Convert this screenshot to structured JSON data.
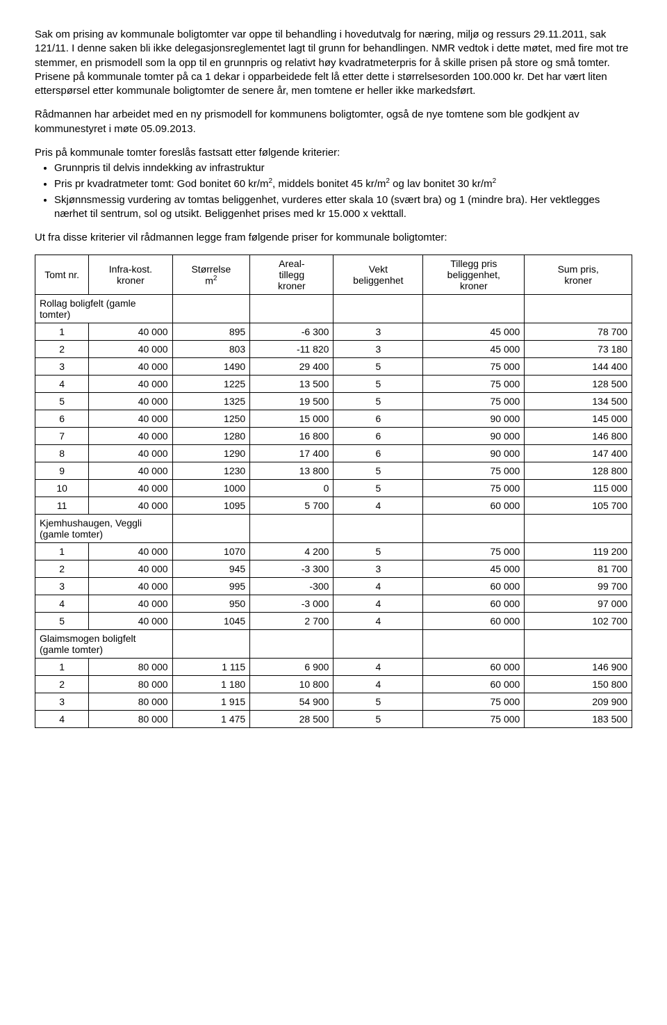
{
  "paragraphs": {
    "p1": "Sak om prising av kommunale boligtomter var oppe til behandling i hovedutvalg for næring, miljø og ressurs 29.11.2011, sak 121/11. I denne saken bli ikke delegasjonsreglementet lagt til grunn for behandlingen. NMR vedtok i dette møtet, med fire mot tre stemmer, en prismodell som la opp til en grunnpris og relativt høy kvadratmeterpris for å skille prisen på store og små tomter. Prisene på kommunale tomter på ca 1 dekar i opparbeidede felt lå etter dette i størrelsesorden 100.000 kr. Det har vært liten etterspørsel etter kommunale boligtomter de senere år, men tomtene er heller ikke markedsført.",
    "p2": "Rådmannen har arbeidet med en ny prismodell for kommunens boligtomter, også de nye tomtene som ble godkjent av kommunestyret i møte 05.09.2013.",
    "p3": "Pris på kommunale tomter foreslås fastsatt etter følgende kriterier:",
    "b1": "Grunnpris til delvis inndekking av infrastruktur",
    "b2a": "Pris pr kvadratmeter tomt: God bonitet 60 kr/m",
    "b2b": ", middels bonitet 45 kr/m",
    "b2c": " og lav bonitet 30 kr/m",
    "b3": "Skjønnsmessig vurdering av tomtas beliggenhet, vurderes etter skala 10 (svært bra) og 1 (mindre bra). Her vektlegges nærhet til sentrum, sol og utsikt. Beliggenhet prises med kr 15.000 x vekttall.",
    "p4": "Ut fra disse kriterier vil rådmannen legge fram følgende priser for kommunale boligtomter:"
  },
  "headers": {
    "c1": "Tomt nr.",
    "c2a": "Infra-kost.",
    "c2b": "kroner",
    "c3a": "Størrelse",
    "c3b": "m",
    "c4a": "Areal-",
    "c4b": "tillegg",
    "c4c": "kroner",
    "c5a": "Vekt",
    "c5b": "beliggenhet",
    "c6a": "Tillegg pris",
    "c6b": "beliggenhet,",
    "c6c": "kroner",
    "c7a": "Sum pris,",
    "c7b": "kroner"
  },
  "sections": {
    "s1": "Rollag boligfelt (gamle tomter)",
    "s2": "Kjemhushaugen, Veggli (gamle tomter)",
    "s3": "Glaimsmogen boligfelt (gamle tomter)"
  },
  "rows": {
    "r1": {
      "n": "1",
      "infra": "40 000",
      "size": "895",
      "areal": "-6 300",
      "vekt": "3",
      "tillegg": "45 000",
      "sum": "78 700"
    },
    "r2": {
      "n": "2",
      "infra": "40 000",
      "size": "803",
      "areal": "-11 820",
      "vekt": "3",
      "tillegg": "45 000",
      "sum": "73 180"
    },
    "r3": {
      "n": "3",
      "infra": "40 000",
      "size": "1490",
      "areal": "29 400",
      "vekt": "5",
      "tillegg": "75 000",
      "sum": "144 400"
    },
    "r4": {
      "n": "4",
      "infra": "40 000",
      "size": "1225",
      "areal": "13 500",
      "vekt": "5",
      "tillegg": "75 000",
      "sum": "128 500"
    },
    "r5": {
      "n": "5",
      "infra": "40 000",
      "size": "1325",
      "areal": "19 500",
      "vekt": "5",
      "tillegg": "75 000",
      "sum": "134 500"
    },
    "r6": {
      "n": "6",
      "infra": "40 000",
      "size": "1250",
      "areal": "15 000",
      "vekt": "6",
      "tillegg": "90 000",
      "sum": "145 000"
    },
    "r7": {
      "n": "7",
      "infra": "40 000",
      "size": "1280",
      "areal": "16 800",
      "vekt": "6",
      "tillegg": "90 000",
      "sum": "146 800"
    },
    "r8": {
      "n": "8",
      "infra": "40 000",
      "size": "1290",
      "areal": "17 400",
      "vekt": "6",
      "tillegg": "90 000",
      "sum": "147 400"
    },
    "r9": {
      "n": "9",
      "infra": "40 000",
      "size": "1230",
      "areal": "13 800",
      "vekt": "5",
      "tillegg": "75 000",
      "sum": "128 800"
    },
    "r10": {
      "n": "10",
      "infra": "40 000",
      "size": "1000",
      "areal": "0",
      "vekt": "5",
      "tillegg": "75 000",
      "sum": "115 000"
    },
    "r11": {
      "n": "11",
      "infra": "40 000",
      "size": "1095",
      "areal": "5 700",
      "vekt": "4",
      "tillegg": "60 000",
      "sum": "105 700"
    },
    "k1": {
      "n": "1",
      "infra": "40 000",
      "size": "1070",
      "areal": "4 200",
      "vekt": "5",
      "tillegg": "75 000",
      "sum": "119 200"
    },
    "k2": {
      "n": "2",
      "infra": "40 000",
      "size": "945",
      "areal": "-3 300",
      "vekt": "3",
      "tillegg": "45 000",
      "sum": "81 700"
    },
    "k3": {
      "n": "3",
      "infra": "40 000",
      "size": "995",
      "areal": "-300",
      "vekt": "4",
      "tillegg": "60 000",
      "sum": "99 700"
    },
    "k4": {
      "n": "4",
      "infra": "40 000",
      "size": "950",
      "areal": "-3 000",
      "vekt": "4",
      "tillegg": "60 000",
      "sum": "97 000"
    },
    "k5": {
      "n": "5",
      "infra": "40 000",
      "size": "1045",
      "areal": "2 700",
      "vekt": "4",
      "tillegg": "60 000",
      "sum": "102 700"
    },
    "g1": {
      "n": "1",
      "infra": "80 000",
      "size": "1 115",
      "areal": "6 900",
      "vekt": "4",
      "tillegg": "60 000",
      "sum": "146 900"
    },
    "g2": {
      "n": "2",
      "infra": "80 000",
      "size": "1 180",
      "areal": "10 800",
      "vekt": "4",
      "tillegg": "60 000",
      "sum": "150 800"
    },
    "g3": {
      "n": "3",
      "infra": "80 000",
      "size": "1 915",
      "areal": "54 900",
      "vekt": "5",
      "tillegg": "75 000",
      "sum": "209 900"
    },
    "g4": {
      "n": "4",
      "infra": "80 000",
      "size": "1 475",
      "areal": "28 500",
      "vekt": "5",
      "tillegg": "75 000",
      "sum": "183 500"
    }
  }
}
